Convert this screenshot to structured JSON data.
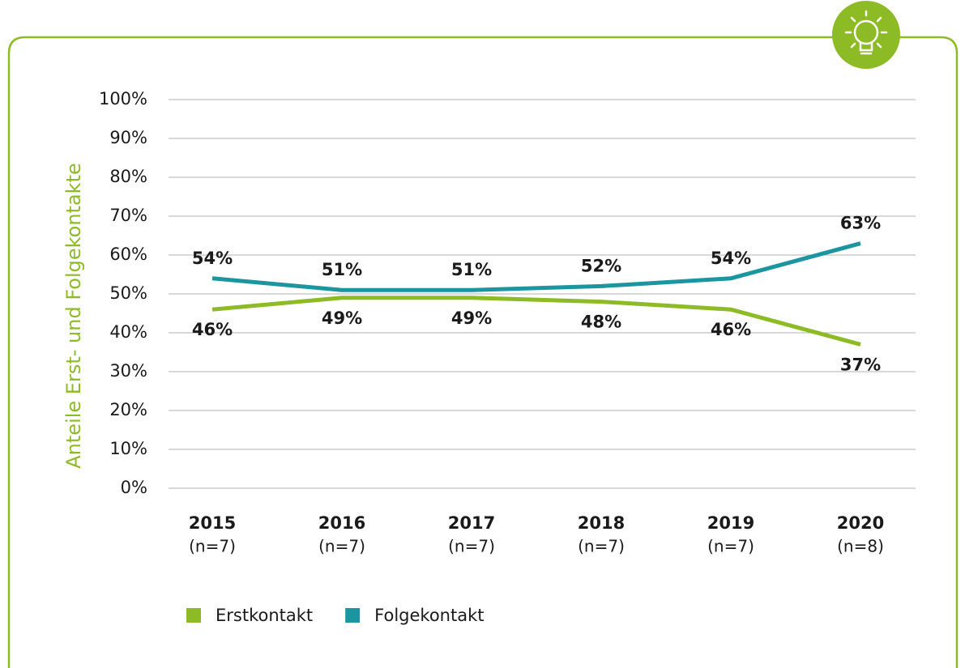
{
  "chart_data": {
    "type": "line",
    "y_axis_label": "Anteile Erst- und Folgekontakte",
    "categories": [
      "2015",
      "2016",
      "2017",
      "2018",
      "2019",
      "2020"
    ],
    "category_sublabels": [
      "(n=7)",
      "(n=7)",
      "(n=7)",
      "(n=7)",
      "(n=7)",
      "(n=8)"
    ],
    "series": [
      {
        "name": "Erstkontakt",
        "color": "#8dbb25",
        "values": [
          46,
          49,
          49,
          48,
          46,
          37
        ],
        "value_labels": [
          "46%",
          "49%",
          "49%",
          "48%",
          "46%",
          "37%"
        ]
      },
      {
        "name": "Folgekontakt",
        "color": "#1b95a0",
        "values": [
          54,
          51,
          51,
          52,
          54,
          63
        ],
        "value_labels": [
          "54%",
          "51%",
          "51%",
          "52%",
          "54%",
          "63%"
        ]
      }
    ],
    "ylim": [
      0,
      100
    ],
    "yticks": [
      {
        "value": 0,
        "label": "0%"
      },
      {
        "value": 10,
        "label": "10%"
      },
      {
        "value": 20,
        "label": "20%"
      },
      {
        "value": 30,
        "label": "30%"
      },
      {
        "value": 40,
        "label": "40%"
      },
      {
        "value": 50,
        "label": "50%"
      },
      {
        "value": 60,
        "label": "60%"
      },
      {
        "value": 70,
        "label": "70%"
      },
      {
        "value": 80,
        "label": "80%"
      },
      {
        "value": 90,
        "label": "90%"
      },
      {
        "value": 100,
        "label": "100%"
      }
    ],
    "grid": true,
    "legend": "bottom"
  }
}
